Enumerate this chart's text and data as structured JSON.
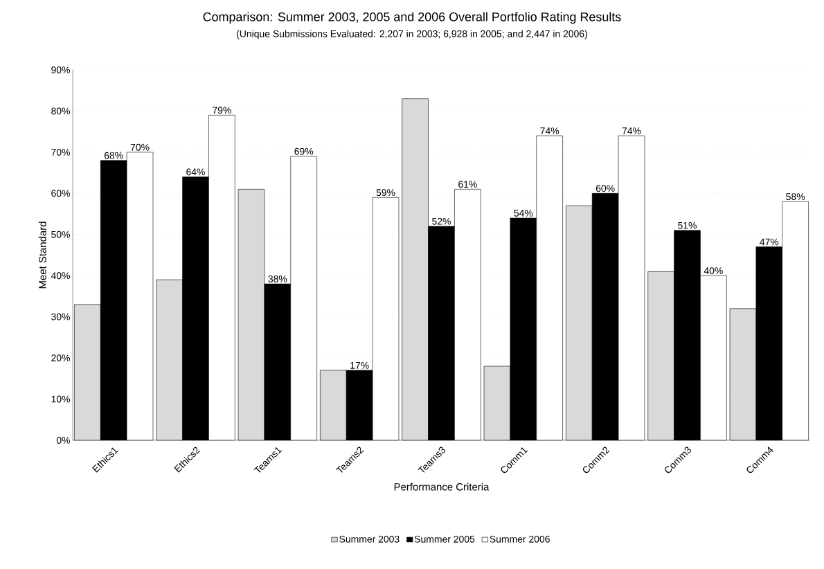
{
  "chart_data": {
    "type": "bar",
    "title": "Comparison: Summer 2003, 2005 and 2006 Overall Portfolio Rating Results",
    "subtitle": "(Unique Submissions Evaluated: 2,207 in 2003; 6,928 in 2005; and 2,447 in 2006)",
    "xlabel": "Performance Criteria",
    "ylabel": "Meet Standard",
    "categories": [
      "Ethics1",
      "Ethics2",
      "Teams1",
      "Teams2",
      "Teams3",
      "Comm1",
      "Comm2",
      "Comm3",
      "Comm4"
    ],
    "series": [
      {
        "name": "Summer 2003",
        "color": "#d9d9d9",
        "values": [
          33,
          39,
          61,
          17,
          83,
          18,
          57,
          41,
          32
        ]
      },
      {
        "name": "Summer 2005",
        "color": "#000000",
        "values": [
          68,
          64,
          38,
          17,
          52,
          54,
          60,
          51,
          47
        ],
        "value_labels": [
          "68%",
          "64%",
          "38%",
          "17%",
          "52%",
          "54%",
          "60%",
          "51%",
          "47%"
        ]
      },
      {
        "name": "Summer 2006",
        "color": "#ffffff",
        "values": [
          70,
          79,
          69,
          59,
          61,
          74,
          74,
          40,
          58
        ],
        "value_labels": [
          "70%",
          "79%",
          "69%",
          "59%",
          "61%",
          "74%",
          "74%",
          "40%",
          "58%"
        ]
      }
    ],
    "ylim": [
      0,
      90
    ],
    "yticks": [
      {
        "value": 0,
        "label": "0%"
      },
      {
        "value": 10,
        "label": "10%"
      },
      {
        "value": 20,
        "label": "20%"
      },
      {
        "value": 30,
        "label": "30%"
      },
      {
        "value": 40,
        "label": "40%"
      },
      {
        "value": 50,
        "label": "50%"
      },
      {
        "value": 60,
        "label": "60%"
      },
      {
        "value": 70,
        "label": "70%"
      },
      {
        "value": 80,
        "label": "80%"
      },
      {
        "value": 90,
        "label": "90%"
      }
    ],
    "grid": "y",
    "legend": "bottom"
  }
}
